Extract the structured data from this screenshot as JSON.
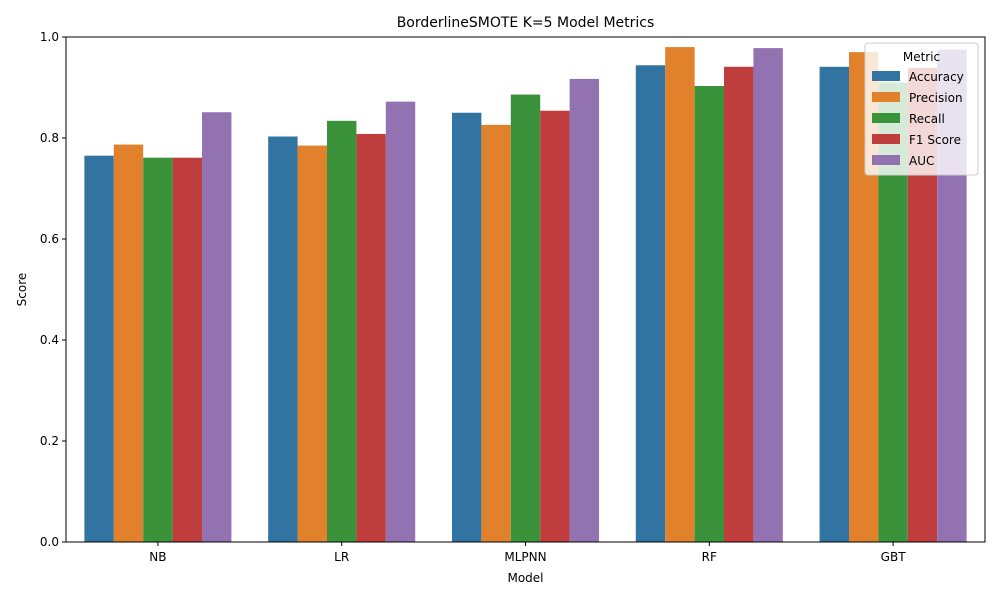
{
  "chart_data": {
    "type": "bar",
    "title": "BorderlineSMOTE K=5 Model Metrics",
    "xlabel": "Model",
    "ylabel": "Score",
    "ylim": [
      0,
      1.0
    ],
    "yticks": [
      0.0,
      0.2,
      0.4,
      0.6,
      0.8,
      1.0
    ],
    "ytick_labels": [
      "0.0",
      "0.2",
      "0.4",
      "0.6",
      "0.8",
      "1.0"
    ],
    "grid": false,
    "legend": {
      "title": "Metric",
      "placement": "top-right"
    },
    "categories": [
      "NB",
      "LR",
      "MLPNN",
      "RF",
      "GBT"
    ],
    "series": [
      {
        "name": "Accuracy",
        "color": "#3274a1",
        "values": [
          0.765,
          0.803,
          0.85,
          0.944,
          0.941
        ]
      },
      {
        "name": "Precision",
        "color": "#e1812c",
        "values": [
          0.787,
          0.785,
          0.826,
          0.98,
          0.97
        ]
      },
      {
        "name": "Recall",
        "color": "#3a923a",
        "values": [
          0.761,
          0.834,
          0.886,
          0.903,
          0.91
        ]
      },
      {
        "name": "F1 Score",
        "color": "#c03d3e",
        "values": [
          0.761,
          0.808,
          0.854,
          0.941,
          0.939
        ]
      },
      {
        "name": "AUC",
        "color": "#9372b2",
        "values": [
          0.851,
          0.872,
          0.917,
          0.978,
          0.975
        ]
      }
    ]
  }
}
